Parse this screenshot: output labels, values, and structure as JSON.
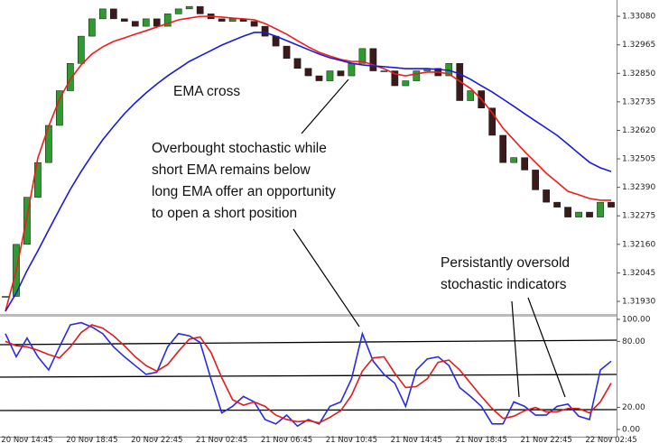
{
  "chart_data": [
    {
      "type": "candlestick",
      "categories": [
        null,
        null,
        "20 Nov 14:45",
        null,
        null,
        null,
        null,
        null,
        "20 Nov 18:45",
        null,
        null,
        null,
        null,
        null,
        "20 Nov 22:45",
        null,
        null,
        null,
        null,
        null,
        "21 Nov 02:45",
        null,
        null,
        null,
        null,
        null,
        "21 Nov 06:45",
        null,
        null,
        null,
        null,
        null,
        "21 Nov 10:45",
        null,
        null,
        null,
        null,
        null,
        "21 Nov 14:45",
        null,
        null,
        null,
        null,
        null,
        "21 Nov 18:45",
        null,
        null,
        null,
        null,
        null,
        "21 Nov 22:45",
        null,
        null,
        null,
        null,
        null,
        "22 Nov 02:45"
      ],
      "close": [
        1.3195,
        1.3216,
        1.3235,
        1.3249,
        1.3264,
        1.3278,
        1.3289,
        1.33,
        1.3307,
        1.3311,
        1.3307,
        1.3306,
        1.3304,
        1.3307,
        1.3304,
        1.3309,
        1.3311,
        1.3312,
        1.3309,
        1.3307,
        1.3306,
        1.3307,
        1.3306,
        1.3304,
        1.33,
        1.3296,
        1.3291,
        1.3287,
        1.3284,
        1.3282,
        1.3286,
        1.3284,
        1.3289,
        1.3295,
        1.3286,
        1.3286,
        1.328,
        1.3282,
        1.3286,
        1.3287,
        1.3284,
        1.3289,
        1.3274,
        1.3278,
        1.3271,
        1.326,
        1.3249,
        1.3251,
        1.3246,
        1.3238,
        1.3233,
        1.3231,
        1.3227,
        1.3229,
        1.3227,
        1.3233,
        1.3231
      ],
      "up_color": "#2f9a2f",
      "down_color": "#3a1a1a",
      "series": [
        {
          "color": "#ee1c1c",
          "values": [
            1.3189,
            1.32054,
            1.32272,
            1.32509,
            1.32636,
            1.32746,
            1.32826,
            1.32884,
            1.32928,
            1.32957,
            1.32979,
            1.32993,
            1.33008,
            1.33022,
            1.33037,
            1.33051,
            1.33066,
            1.33073,
            1.3308,
            1.3308,
            1.33077,
            1.33073,
            1.3307,
            1.33066,
            1.33051,
            1.3303,
            1.33008,
            1.32982,
            1.32957,
            1.32935,
            1.3292,
            1.32906,
            1.32898,
            1.32898,
            1.32884,
            1.32869,
            1.32848,
            1.3284,
            1.32848,
            1.32855,
            1.32855,
            1.32848,
            1.32818,
            1.32789,
            1.32746,
            1.32691,
            1.32629,
            1.32582,
            1.32534,
            1.32491,
            1.32447,
            1.32411,
            1.32374,
            1.3236,
            1.32345,
            1.32338,
            1.32338
          ]
        },
        {
          "color": "#1a1adc",
          "values": [
            1.3189,
            1.31963,
            1.32054,
            1.32134,
            1.32218,
            1.32301,
            1.32382,
            1.32454,
            1.3252,
            1.32582,
            1.32636,
            1.32687,
            1.32731,
            1.32771,
            1.32807,
            1.3284,
            1.32869,
            1.32898,
            1.3292,
            1.32942,
            1.32964,
            1.32982,
            1.33,
            1.33015,
            1.33015,
            1.33,
            1.32982,
            1.32964,
            1.32946,
            1.32928,
            1.32913,
            1.32902,
            1.32891,
            1.32884,
            1.3288,
            1.32877,
            1.32873,
            1.32869,
            1.32869,
            1.32869,
            1.32866,
            1.32862,
            1.32848,
            1.32826,
            1.328,
            1.32775,
            1.32746,
            1.32717,
            1.32687,
            1.32658,
            1.32629,
            1.326,
            1.32564,
            1.32527,
            1.32491,
            1.32469,
            1.32454
          ]
        }
      ],
      "ylim": [
        1.31879,
        1.33146
      ],
      "yticks": [
        {
          "value": 1.3308,
          "label": "1.33080"
        },
        {
          "value": 1.32965,
          "label": "1.32965"
        },
        {
          "value": 1.3285,
          "label": "1.32850"
        },
        {
          "value": 1.32735,
          "label": "1.32735"
        },
        {
          "value": 1.3262,
          "label": "1.32620"
        },
        {
          "value": 1.32505,
          "label": "1.32505"
        },
        {
          "value": 1.3239,
          "label": "1.32390"
        },
        {
          "value": 1.32275,
          "label": "1.32275"
        },
        {
          "value": 1.3216,
          "label": "1.32160"
        },
        {
          "value": 1.32045,
          "label": "1.32045"
        },
        {
          "value": 1.3193,
          "label": "1.31930"
        }
      ],
      "annotations": [
        {
          "lines": [
            "EMA cross"
          ]
        },
        {
          "lines": [
            "Overbought stochastic while",
            "short EMA remains below",
            "long EMA offer an opportunity",
            "to open a short position"
          ]
        },
        {
          "lines": [
            "Persistantly oversold",
            "stochastic indicators"
          ]
        }
      ]
    },
    {
      "type": "line",
      "series": [
        {
          "color": "#2a2ae0",
          "values": [
            87,
            66,
            83,
            66,
            54,
            75,
            95,
            97,
            93,
            87,
            75,
            66,
            58,
            50,
            52,
            75,
            87,
            85,
            79,
            46,
            15,
            21,
            30,
            25,
            9,
            5,
            13,
            3,
            9,
            5,
            21,
            25,
            46,
            87,
            62,
            50,
            42,
            21,
            54,
            64,
            66,
            58,
            38,
            30,
            21,
            5,
            5,
            25,
            21,
            13,
            13,
            21,
            23,
            12,
            9,
            54,
            62
          ]
        },
        {
          "color": "#e01c1c",
          "values": [
            80,
            76,
            75,
            72,
            68,
            65,
            75,
            88,
            95,
            92,
            85,
            76,
            66,
            58,
            53,
            59,
            71,
            82,
            84,
            70,
            47,
            27,
            22,
            25,
            21,
            13,
            9,
            7,
            8,
            6,
            11,
            17,
            31,
            53,
            65,
            66,
            51,
            38,
            39,
            46,
            61,
            63,
            54,
            42,
            30,
            19,
            10,
            12,
            17,
            20,
            16,
            16,
            19,
            19,
            15,
            25,
            42
          ]
        }
      ],
      "ylim": [
        -6.6,
        101.6
      ],
      "yticks": [
        {
          "value": 100,
          "label": "100.00"
        },
        {
          "value": 80,
          "label": "80.00"
        },
        {
          "value": 20,
          "label": "20.00"
        },
        {
          "value": 0,
          "label": "0.00"
        }
      ]
    }
  ]
}
